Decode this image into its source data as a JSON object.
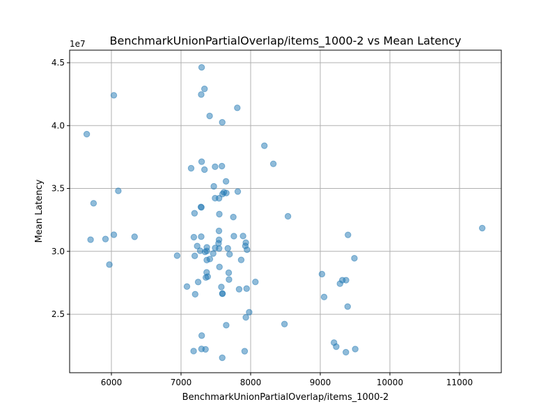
{
  "chart_data": {
    "type": "scatter",
    "title": "BenchmarkUnionPartialOverlap/items_1000-2 vs Mean Latency",
    "xlabel": "BenchmarkUnionPartialOverlap/items_1000-2",
    "ylabel": "Mean Latency",
    "y_offset_label": "1e7",
    "xlim": [
      5400,
      11600
    ],
    "ylim": [
      20350000,
      46000000
    ],
    "x_ticks": [
      6000,
      7000,
      8000,
      9000,
      10000,
      11000
    ],
    "x_tick_labels": [
      "6000",
      "7000",
      "8000",
      "9000",
      "10000",
      "11000"
    ],
    "y_ticks": [
      25000000,
      30000000,
      35000000,
      40000000,
      45000000
    ],
    "y_tick_labels": [
      "2.5",
      "3.0",
      "3.5",
      "4.0",
      "4.5"
    ],
    "grid": true,
    "color": "#1f77b4",
    "points": [
      {
        "x": 7296,
        "y": 44630000
      },
      {
        "x": 7337,
        "y": 42920000
      },
      {
        "x": 7290,
        "y": 42470000
      },
      {
        "x": 6035,
        "y": 42410000
      },
      {
        "x": 7808,
        "y": 41410000
      },
      {
        "x": 7411,
        "y": 40770000
      },
      {
        "x": 7592,
        "y": 40260000
      },
      {
        "x": 5646,
        "y": 39320000
      },
      {
        "x": 8197,
        "y": 38400000
      },
      {
        "x": 8326,
        "y": 36960000
      },
      {
        "x": 7296,
        "y": 37130000
      },
      {
        "x": 7489,
        "y": 36730000
      },
      {
        "x": 7587,
        "y": 36780000
      },
      {
        "x": 7145,
        "y": 36610000
      },
      {
        "x": 7337,
        "y": 36500000
      },
      {
        "x": 7646,
        "y": 35570000
      },
      {
        "x": 7471,
        "y": 35170000
      },
      {
        "x": 7616,
        "y": 34700000
      },
      {
        "x": 7651,
        "y": 34640000
      },
      {
        "x": 7815,
        "y": 34760000
      },
      {
        "x": 6099,
        "y": 34810000
      },
      {
        "x": 7596,
        "y": 34560000
      },
      {
        "x": 7489,
        "y": 34230000
      },
      {
        "x": 7546,
        "y": 34220000
      },
      {
        "x": 5744,
        "y": 33820000
      },
      {
        "x": 7286,
        "y": 33530000
      },
      {
        "x": 7292,
        "y": 33500000
      },
      {
        "x": 7194,
        "y": 33030000
      },
      {
        "x": 7550,
        "y": 32960000
      },
      {
        "x": 8536,
        "y": 32790000
      },
      {
        "x": 7751,
        "y": 32730000
      },
      {
        "x": 11326,
        "y": 31850000
      },
      {
        "x": 7545,
        "y": 31630000
      },
      {
        "x": 6035,
        "y": 31320000
      },
      {
        "x": 9398,
        "y": 31310000
      },
      {
        "x": 7184,
        "y": 31130000
      },
      {
        "x": 7290,
        "y": 31170000
      },
      {
        "x": 7759,
        "y": 31210000
      },
      {
        "x": 7891,
        "y": 31220000
      },
      {
        "x": 6333,
        "y": 31160000
      },
      {
        "x": 5915,
        "y": 30980000
      },
      {
        "x": 5701,
        "y": 30930000
      },
      {
        "x": 7546,
        "y": 30920000
      },
      {
        "x": 7931,
        "y": 30690000
      },
      {
        "x": 7539,
        "y": 30640000
      },
      {
        "x": 7232,
        "y": 30420000
      },
      {
        "x": 7924,
        "y": 30430000
      },
      {
        "x": 7371,
        "y": 30320000
      },
      {
        "x": 7490,
        "y": 30270000
      },
      {
        "x": 7547,
        "y": 30230000
      },
      {
        "x": 7672,
        "y": 30240000
      },
      {
        "x": 7948,
        "y": 30130000
      },
      {
        "x": 7275,
        "y": 30050000
      },
      {
        "x": 7371,
        "y": 30030000
      },
      {
        "x": 7345,
        "y": 29960000
      },
      {
        "x": 7462,
        "y": 29830000
      },
      {
        "x": 7697,
        "y": 29770000
      },
      {
        "x": 6944,
        "y": 29660000
      },
      {
        "x": 7197,
        "y": 29640000
      },
      {
        "x": 9490,
        "y": 29450000
      },
      {
        "x": 7370,
        "y": 29310000
      },
      {
        "x": 7414,
        "y": 29390000
      },
      {
        "x": 7864,
        "y": 29320000
      },
      {
        "x": 5971,
        "y": 28950000
      },
      {
        "x": 7552,
        "y": 28760000
      },
      {
        "x": 7368,
        "y": 28330000
      },
      {
        "x": 7685,
        "y": 28300000
      },
      {
        "x": 9024,
        "y": 28190000
      },
      {
        "x": 7383,
        "y": 27990000
      },
      {
        "x": 7357,
        "y": 27920000
      },
      {
        "x": 7689,
        "y": 27760000
      },
      {
        "x": 9317,
        "y": 27710000
      },
      {
        "x": 9370,
        "y": 27710000
      },
      {
        "x": 7246,
        "y": 27560000
      },
      {
        "x": 8068,
        "y": 27570000
      },
      {
        "x": 9283,
        "y": 27430000
      },
      {
        "x": 7085,
        "y": 27200000
      },
      {
        "x": 7579,
        "y": 27170000
      },
      {
        "x": 7834,
        "y": 26990000
      },
      {
        "x": 7942,
        "y": 27040000
      },
      {
        "x": 7203,
        "y": 26590000
      },
      {
        "x": 7595,
        "y": 26650000
      },
      {
        "x": 7594,
        "y": 26630000
      },
      {
        "x": 9055,
        "y": 26370000
      },
      {
        "x": 9393,
        "y": 25610000
      },
      {
        "x": 7979,
        "y": 25160000
      },
      {
        "x": 7931,
        "y": 24750000
      },
      {
        "x": 7649,
        "y": 24130000
      },
      {
        "x": 8486,
        "y": 24220000
      },
      {
        "x": 7297,
        "y": 23300000
      },
      {
        "x": 9197,
        "y": 22740000
      },
      {
        "x": 9229,
        "y": 22420000
      },
      {
        "x": 7294,
        "y": 22240000
      },
      {
        "x": 7352,
        "y": 22210000
      },
      {
        "x": 7181,
        "y": 22070000
      },
      {
        "x": 7914,
        "y": 22060000
      },
      {
        "x": 9502,
        "y": 22230000
      },
      {
        "x": 9368,
        "y": 21980000
      },
      {
        "x": 7592,
        "y": 21540000
      }
    ]
  }
}
